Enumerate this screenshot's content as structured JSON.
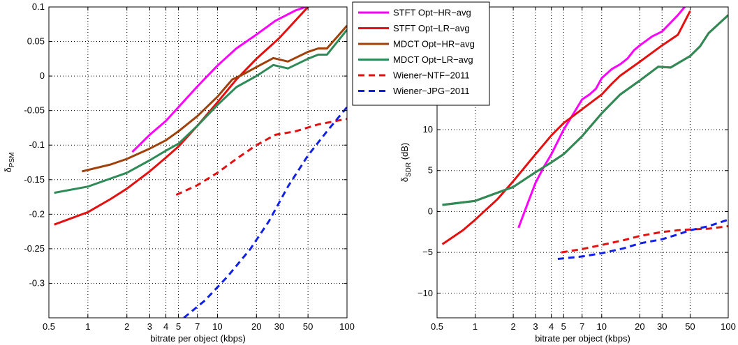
{
  "legend": {
    "location": "top-center",
    "entries": [
      {
        "series_key": "stft_hr",
        "label": "STFT Opt−HR−avg",
        "color": "#ff00ff",
        "style": "solid"
      },
      {
        "series_key": "stft_lr",
        "label": "STFT Opt−LR−avg",
        "color": "#e41010",
        "style": "solid"
      },
      {
        "series_key": "mdct_hr",
        "label": "MDCT Opt−HR−avg",
        "color": "#a0400a",
        "style": "solid"
      },
      {
        "series_key": "mdct_lr",
        "label": "MDCT Opt−LR−avg",
        "color": "#2e8b57",
        "style": "solid"
      },
      {
        "series_key": "wiener_ntf",
        "label": "Wiener−NTF−2011",
        "color": "#e41010",
        "style": "dashed"
      },
      {
        "series_key": "wiener_jpg",
        "label": "Wiener−JPG−2011",
        "color": "#1020e8",
        "style": "dashed"
      }
    ]
  },
  "chart_data": [
    {
      "type": "line",
      "xlabel": "bitrate per object (kbps)",
      "ylabel_main": "δ",
      "ylabel_sub": "PSM",
      "xscale": "log",
      "xlim": [
        0.5,
        100
      ],
      "ylim": [
        -0.35,
        0.1
      ],
      "grid": "dotted",
      "x_ticks": [
        0.5,
        1,
        2,
        3,
        4,
        5,
        7,
        10,
        20,
        30,
        50,
        100
      ],
      "x_tick_labels": [
        "0.5",
        "1",
        "2",
        "3",
        "4",
        "5",
        "7",
        "10",
        "20",
        "30",
        "50",
        "100"
      ],
      "y_ticks": [
        -0.3,
        -0.25,
        -0.2,
        -0.15,
        -0.1,
        -0.05,
        0,
        0.05,
        0.1
      ],
      "y_tick_labels": [
        "-0.3",
        "-0.25",
        "-0.2",
        "-0.15",
        "-0.1",
        "-0.05",
        "0",
        "0.05",
        "0.1"
      ],
      "series": [
        {
          "key": "stft_hr",
          "x": [
            2.2,
            3,
            4,
            5,
            7,
            10,
            14,
            20,
            28,
            40,
            48
          ],
          "y": [
            -0.11,
            -0.085,
            -0.065,
            -0.045,
            -0.015,
            0.015,
            0.04,
            0.06,
            0.08,
            0.095,
            0.1
          ]
        },
        {
          "key": "stft_lr",
          "x": [
            0.55,
            1,
            1.5,
            2,
            3,
            4,
            5,
            7,
            10,
            14,
            20,
            30,
            50
          ],
          "y": [
            -0.215,
            -0.197,
            -0.178,
            -0.163,
            -0.138,
            -0.118,
            -0.102,
            -0.072,
            -0.038,
            -0.005,
            0.025,
            0.055,
            0.1
          ]
        },
        {
          "key": "mdct_hr",
          "x": [
            0.9,
            1.5,
            2,
            3,
            4,
            5,
            7,
            10,
            13,
            16,
            20,
            27,
            35,
            50,
            60,
            70,
            100
          ],
          "y": [
            -0.138,
            -0.128,
            -0.12,
            -0.105,
            -0.093,
            -0.08,
            -0.058,
            -0.03,
            -0.005,
            0.003,
            0.013,
            0.026,
            0.021,
            0.035,
            0.04,
            0.04,
            0.073
          ]
        },
        {
          "key": "mdct_lr",
          "x": [
            0.55,
            1,
            2,
            3,
            4,
            5,
            7,
            10,
            14,
            20,
            27,
            35,
            50,
            60,
            70,
            100
          ],
          "y": [
            -0.169,
            -0.16,
            -0.14,
            -0.122,
            -0.108,
            -0.098,
            -0.072,
            -0.042,
            -0.016,
            0.0,
            0.016,
            0.011,
            0.025,
            0.031,
            0.031,
            0.067
          ]
        },
        {
          "key": "wiener_ntf",
          "x": [
            4.8,
            7,
            10,
            14,
            20,
            28,
            40,
            60,
            100
          ],
          "y": [
            -0.172,
            -0.158,
            -0.14,
            -0.12,
            -0.1,
            -0.085,
            -0.08,
            -0.07,
            -0.062
          ]
        },
        {
          "key": "wiener_jpg",
          "x": [
            5.5,
            8,
            12,
            18,
            25,
            35,
            50,
            70,
            100
          ],
          "y": [
            -0.35,
            -0.325,
            -0.29,
            -0.25,
            -0.21,
            -0.16,
            -0.115,
            -0.08,
            -0.045
          ]
        }
      ]
    },
    {
      "type": "line",
      "xlabel": "bitrate per object (kbps)",
      "ylabel_main": "δ",
      "ylabel_sub": "SDR",
      "ylabel_suffix": " (dB)",
      "xscale": "log",
      "xlim": [
        0.5,
        100
      ],
      "ylim": [
        -13,
        25
      ],
      "grid": "dotted",
      "x_ticks": [
        0.5,
        1,
        2,
        3,
        4,
        5,
        7,
        10,
        20,
        30,
        50,
        100
      ],
      "x_tick_labels": [
        "0.5",
        "1",
        "2",
        "3",
        "4",
        "5",
        "7",
        "10",
        "20",
        "30",
        "50",
        "100"
      ],
      "y_ticks": [
        -10,
        -5,
        0,
        5,
        10
      ],
      "y_tick_labels": [
        "−10",
        "−5",
        "0",
        "5",
        "10"
      ],
      "series": [
        {
          "key": "stft_hr",
          "x": [
            2.2,
            2.6,
            3,
            3.5,
            4,
            5,
            6,
            7,
            8,
            9,
            10,
            12,
            14,
            16,
            18,
            20,
            25,
            30,
            40,
            50
          ],
          "y": [
            -2,
            1,
            3.5,
            5.5,
            7,
            10,
            12,
            13.7,
            14.3,
            15,
            16.3,
            17.4,
            18,
            18.7,
            19.7,
            20.3,
            21.4,
            22,
            24,
            25.8
          ]
        },
        {
          "key": "stft_lr",
          "x": [
            0.55,
            0.8,
            1,
            1.5,
            2,
            3,
            4,
            5,
            7,
            10,
            12,
            14,
            20,
            25,
            30,
            40,
            50
          ],
          "y": [
            -4,
            -2.3,
            -1,
            1.5,
            3.7,
            7,
            9.3,
            10.8,
            12.5,
            14.3,
            15.6,
            16.6,
            18.3,
            19.4,
            20.3,
            21.6,
            24.5
          ]
        },
        {
          "key": "mdct_hr",
          "x": [
            0.55,
            1,
            2,
            3,
            4,
            5,
            7,
            10,
            14,
            20,
            28,
            35,
            50,
            60,
            70,
            100
          ],
          "y": [
            0.8,
            1.3,
            3,
            4.8,
            6,
            7,
            9.2,
            12,
            14.3,
            16,
            17.7,
            17.6,
            19,
            20.2,
            21.8,
            24
          ]
        },
        {
          "key": "mdct_lr",
          "x": [
            0.55,
            1,
            2,
            3,
            4,
            5,
            7,
            10,
            14,
            20,
            28,
            35,
            50,
            60,
            70,
            100
          ],
          "y": [
            0.8,
            1.3,
            3,
            4.8,
            6,
            7,
            9.2,
            12,
            14.3,
            16,
            17.7,
            17.6,
            19,
            20.2,
            21.8,
            24
          ]
        },
        {
          "key": "wiener_ntf",
          "x": [
            4.8,
            7,
            10,
            15,
            20,
            30,
            40,
            50,
            70,
            100
          ],
          "y": [
            -5,
            -4.6,
            -4.1,
            -3.5,
            -3,
            -2.5,
            -2.3,
            -2.2,
            -2.1,
            -1.8
          ]
        },
        {
          "key": "wiener_jpg",
          "x": [
            4.5,
            7,
            10,
            15,
            20,
            30,
            40,
            50,
            70,
            100
          ],
          "y": [
            -5.8,
            -5.5,
            -5.1,
            -4.5,
            -3.9,
            -3.4,
            -2.8,
            -2.3,
            -1.8,
            -1
          ]
        }
      ]
    }
  ]
}
